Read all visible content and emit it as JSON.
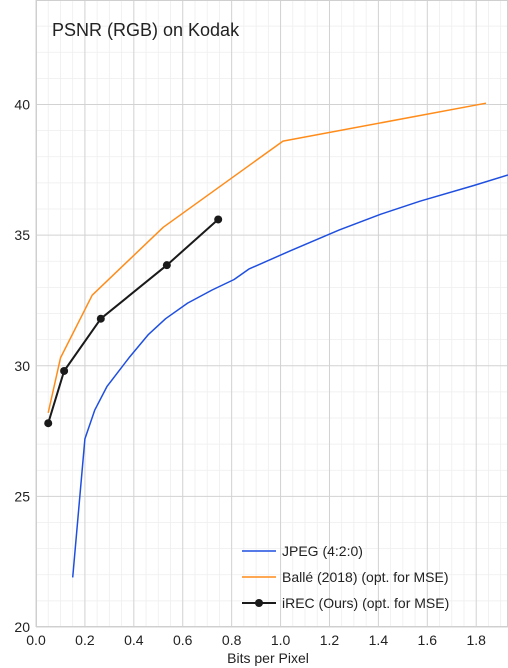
{
  "chart_data": {
    "type": "line",
    "title": "PSNR (RGB) on Kodak",
    "xlabel": "Bits per Pixel",
    "ylabel": "",
    "xlim": [
      0,
      1.93
    ],
    "ylim": [
      20,
      44
    ],
    "x_ticks": [
      "0.0",
      "0.2",
      "0.4",
      "0.6",
      "0.8",
      "1.0",
      "1.2",
      "1.4",
      "1.6",
      "1.8"
    ],
    "y_ticks": [
      "20",
      "25",
      "30",
      "35",
      "40"
    ],
    "grid": true,
    "legend_position": "bottom-right",
    "series": [
      {
        "name": "JPEG (4:2:0)",
        "color": "#1f4fe0",
        "markers": false,
        "x": [
          0.15,
          0.2,
          0.24,
          0.29,
          0.38,
          0.46,
          0.53,
          0.62,
          0.72,
          0.81,
          0.87,
          1.04,
          1.24,
          1.41,
          1.57,
          1.79,
          1.93
        ],
        "y": [
          21.9,
          27.2,
          28.3,
          29.2,
          30.3,
          31.2,
          31.8,
          32.4,
          32.9,
          33.3,
          33.7,
          34.4,
          35.2,
          35.8,
          36.3,
          36.9,
          37.3
        ]
      },
      {
        "name": "Ballé (2018) (opt. for MSE)",
        "color": "#ff8c1a",
        "markers": false,
        "x": [
          0.05,
          0.1,
          0.23,
          0.52,
          1.01,
          1.84
        ],
        "y": [
          28.2,
          30.3,
          32.7,
          35.3,
          38.6,
          40.05
        ]
      },
      {
        "name": "iREC (Ours) (opt. for MSE)",
        "color": "#1a1a1a",
        "markers": true,
        "x": [
          0.05,
          0.115,
          0.265,
          0.535,
          0.745
        ],
        "y": [
          27.8,
          29.8,
          31.8,
          33.85,
          35.6
        ]
      }
    ]
  }
}
